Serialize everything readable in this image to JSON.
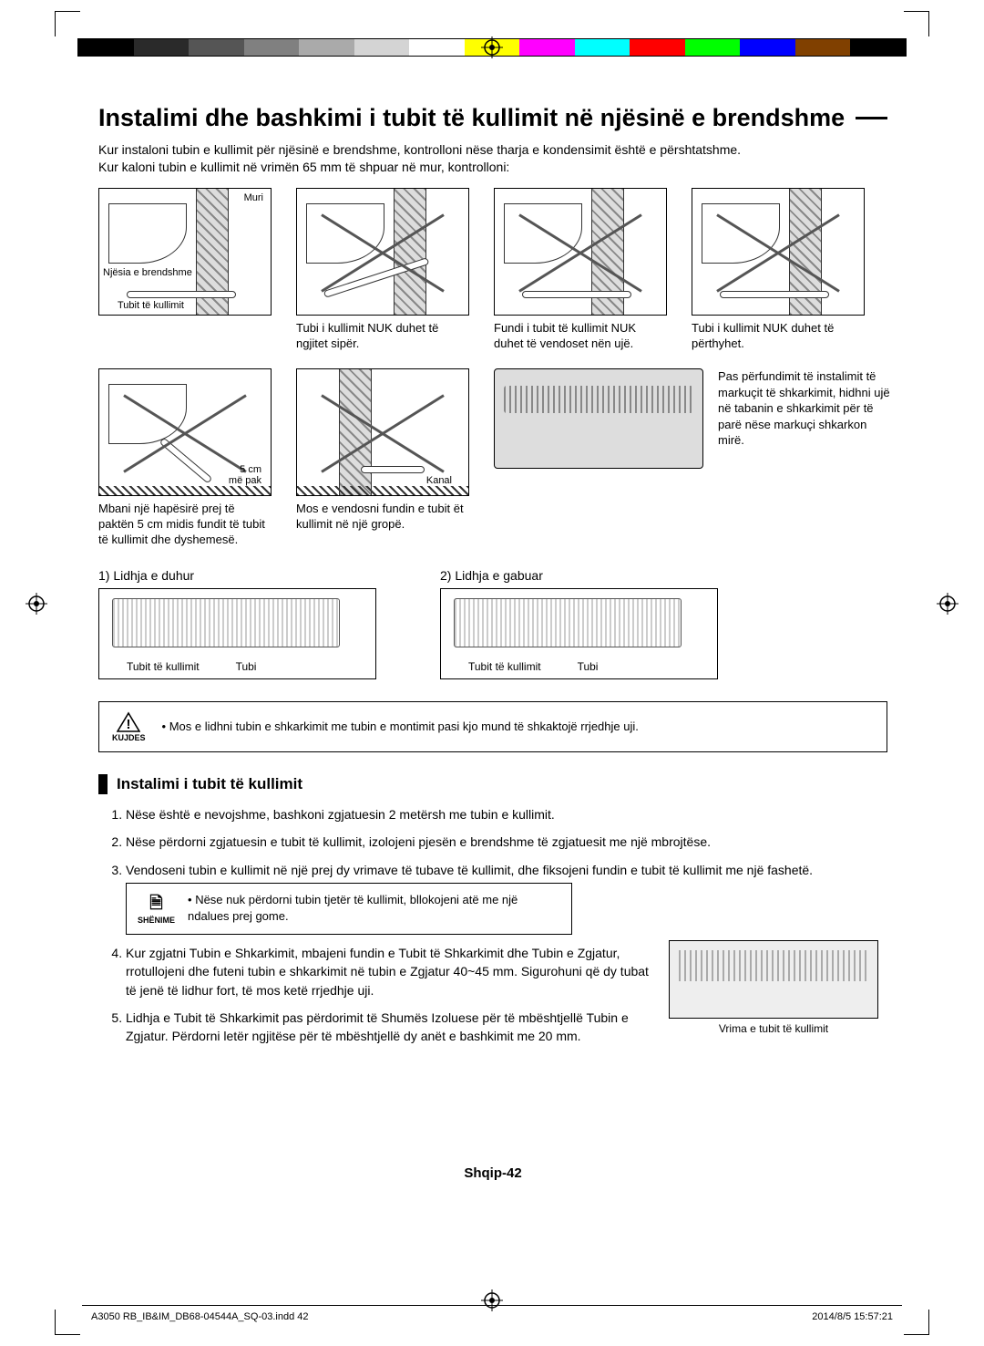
{
  "colorbar": [
    "#000000",
    "#2a2a2a",
    "#555555",
    "#808080",
    "#aaaaaa",
    "#d4d4d4",
    "#ffffff",
    "#ffff00",
    "#ff00ff",
    "#00ffff",
    "#ff0000",
    "#00ff00",
    "#0000ff",
    "#804000",
    "#000000"
  ],
  "registration_color": "#000000",
  "title": "Instalimi dhe bashkimi i tubit të kullimit në njësinë e brendshme",
  "intro": "Kur instaloni tubin e kullimit për njësinë e brendshme, kontrolloni nëse tharja e kondensimit është e përshtatshme.\nKur kaloni tubin e kullimit në vrimën 65 mm të shpuar në mur, kontrolloni:",
  "fig1": {
    "labels": {
      "wall": "Muri",
      "unit": "Njësia e brendshme",
      "hose": "Tubit të kullimit"
    }
  },
  "captions_row1": [
    "",
    "Tubi i kullimit NUK duhet të ngjitet sipër.",
    "Fundi i tubit të kullimit NUK duhet të vendoset nën ujë.",
    "Tubi i kullimit NUK duhet të përthyhet."
  ],
  "row2": {
    "cell1": {
      "dim": "5 cm",
      "dim2": "më pak",
      "caption": "Mbani një hapësirë prej të paktën 5 cm midis fundit të tubit të kullimit dhe dyshemesë."
    },
    "cell2": {
      "label": "Kanal",
      "caption": "Mos e vendosni fundin e tubit ët kullimit në një gropë."
    },
    "right_text": "Pas përfundimit të instalimit të markuçit të shkarkimit, hidhni ujë në tabanin e shkarkimit për të parë nëse markuçi shkarkon mirë."
  },
  "connections": {
    "a": {
      "title": "1) Lidhja e duhur",
      "l1": "Tubit të kullimit",
      "l2": "Tubi"
    },
    "b": {
      "title": "2) Lidhja e gabuar",
      "l1": "Tubit të kullimit",
      "l2": "Tubi"
    }
  },
  "caution": {
    "label": "KUJDES",
    "text": "Mos e lidhni tubin e shkarkimit me tubin e montimit pasi kjo mund të shkaktojë rrjedhje uji."
  },
  "section_heading": "Instalimi i tubit të kullimit",
  "steps": [
    "Nëse është e nevojshme, bashkoni zgjatuesin 2 metërsh me tubin e kullimit.",
    "Nëse përdorni zgjatuesin e tubit të kullimit, izolojeni pjesën e brendshme të zgjatuesit me një mbrojtëse.",
    "Vendoseni tubin e kullimit në një prej dy vrimave të tubave të kullimit, dhe fiksojeni fundin e tubit të kullimit me një fashetë.",
    "Kur zgjatni Tubin e Shkarkimit, mbajeni fundin e Tubit të Shkarkimit dhe Tubin e Zgjatur, rrotullojeni dhe futeni tubin e shkarkimit në tubin e Zgjatur 40~45 mm. Sigurohuni që dy tubat të jenë të lidhur fort, të mos ketë rrjedhje uji.",
    "Lidhja e Tubit të Shkarkimit pas përdorimit të Shumës Izoluese për të mbështjellë Tubin e Zgjatur. Përdorni letër ngjitëse për të mbështjellë dy anët e bashkimit me 20 mm."
  ],
  "inline_note": {
    "label": "SHËNIME",
    "text": "Nëse nuk përdorni tubin tjetër të kullimit, bllokojeni atë me një ndalues prej gome."
  },
  "small_fig_caption": "Vrima e tubit të kullimit",
  "page_number": "Shqip-42",
  "footer_left": "A3050 RB_IB&IM_DB68-04544A_SQ-03.indd   42",
  "footer_right": "2014/8/5   15:57:21"
}
